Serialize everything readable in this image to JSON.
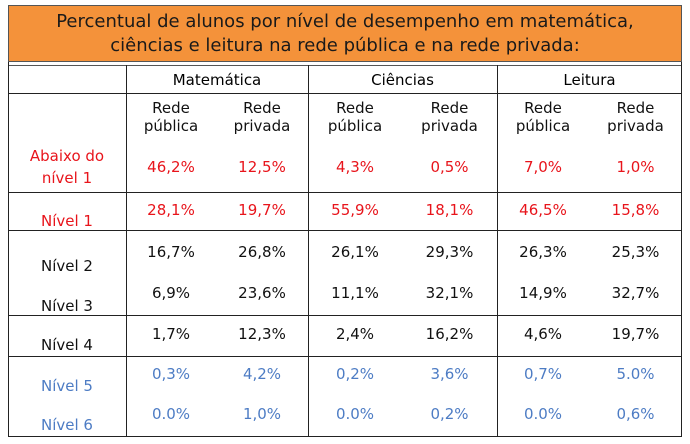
{
  "title": {
    "line1": "Percentual de alunos por nível de desempenho em matemática,",
    "line2": "ciências e leitura na rede pública e na rede privada:"
  },
  "groups": [
    "Matemática",
    "Ciências",
    "Leitura"
  ],
  "subheaders": [
    [
      "Rede",
      "pública"
    ],
    [
      "Rede",
      "privada"
    ],
    [
      "Rede",
      "pública"
    ],
    [
      "Rede",
      "privada"
    ],
    [
      "Rede",
      "pública"
    ],
    [
      "Rede",
      "privada"
    ]
  ],
  "colors": {
    "red": "#e8141b",
    "black": "#111111",
    "blue": "#4d7cc4",
    "title_bg": "#f4923a"
  },
  "rows": [
    {
      "label": "Abaixo do nível 1",
      "label_lines": [
        "Abaixo do",
        "nível 1"
      ],
      "color": "red",
      "values": [
        "46,2%",
        "12,5%",
        "4,3%",
        "0,5%",
        "7,0%",
        "1,0%"
      ]
    },
    {
      "label": "Nível 1",
      "color": "red",
      "values": [
        "28,1%",
        "19,7%",
        "55,9%",
        "18,1%",
        "46,5%",
        "15,8%"
      ]
    },
    {
      "label": "Nível 2",
      "color": "black",
      "values": [
        "16,7%",
        "26,8%",
        "26,1%",
        "29,3%",
        "26,3%",
        "25,3%"
      ]
    },
    {
      "label": "Nível 3",
      "color": "black",
      "values": [
        "6,9%",
        "23,6%",
        "11,1%",
        "32,1%",
        "14,9%",
        "32,7%"
      ]
    },
    {
      "label": "Nível 4",
      "color": "black",
      "values": [
        "1,7%",
        "12,3%",
        "2,4%",
        "16,2%",
        "4,6%",
        "19,7%"
      ]
    },
    {
      "label": "Nível 5",
      "color": "blue",
      "values": [
        "0,3%",
        "4,2%",
        "0,2%",
        "3,6%",
        "0,7%",
        "5.0%"
      ]
    },
    {
      "label": "Nível 6",
      "color": "blue",
      "values": [
        "0.0%",
        "1,0%",
        "0.0%",
        "0,2%",
        "0.0%",
        "0,6%"
      ]
    }
  ]
}
